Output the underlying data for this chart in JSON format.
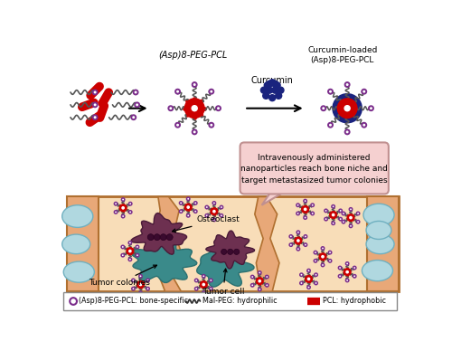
{
  "bg_color": "#ffffff",
  "label_asp_peg_pcl": "(Asp)8-PEG-PCL",
  "label_curcumin": "Curcumin",
  "label_curcumin_loaded": "Curcumin-loaded\n(Asp)8-PEG-PCL",
  "label_iv": "Intravenously administered\nnanoparticles reach bone niche and\ntarget metastasized tumor colonies",
  "label_osteoclast": "Osteoclast",
  "label_tumor_colonies": "Tumor colonies",
  "label_tumor_cell": "Tumor cell",
  "legend_asp": "(Asp)8-PEG-PCL: bone-specific",
  "legend_mal": "Mal-PEG: hydrophilic",
  "legend_pcl": "PCL: hydrophobic",
  "pcl_color": "#cc0000",
  "peg_color": "#7b2d8b",
  "curcumin_color": "#1a237e",
  "bone_color": "#e8a878",
  "bone_inner": "#f5cda0",
  "osteoclast_color": "#6d3050",
  "tumor_color": "#3a8a8a",
  "callout_bg": "#f5d0d0",
  "callout_border": "#c09090"
}
